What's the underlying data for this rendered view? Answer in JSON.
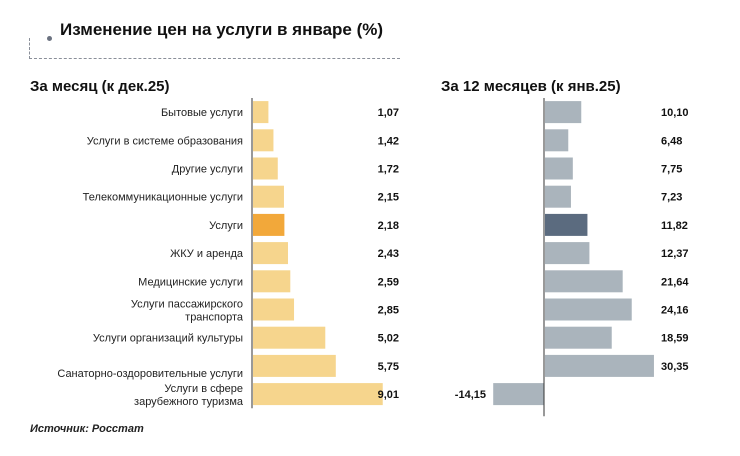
{
  "title": "Изменение цен на услуги в январе (%)",
  "source": "Источник: Росстат",
  "chart_data": [
    {
      "type": "bar",
      "orientation": "horizontal",
      "title": "За месяц (к дек.25)",
      "categories": [
        "Бытовые услуги",
        "Услуги в системе образования",
        "Другие услуги",
        "Телекоммуникационные услуги",
        "Услуги",
        "ЖКУ и аренда",
        "Медицинские услуги",
        "Услуги пассажирского транспорта",
        "Услуги организаций культуры",
        "Санаторно-оздоровительные услуги",
        "Услуги в сфере зарубежного туризма"
      ],
      "values": [
        1.07,
        1.42,
        1.72,
        2.15,
        2.18,
        2.43,
        2.59,
        2.85,
        5.02,
        5.75,
        9.01
      ],
      "value_labels": [
        "1,07",
        "1,42",
        "1,72",
        "2,15",
        "2,18",
        "2,43",
        "2,59",
        "2,85",
        "5,02",
        "5,75",
        "9,01"
      ],
      "highlight": "Услуги",
      "colors": {
        "bar": "#F6D58D",
        "highlight": "#F2A83A"
      }
    },
    {
      "type": "bar",
      "orientation": "horizontal",
      "title": "За 12 месяцев (к янв.25)",
      "categories": [
        "Бытовые услуги",
        "Услуги в системе образования",
        "Другие услуги",
        "Телекоммуникационные услуги",
        "Услуги",
        "ЖКУ и аренда",
        "Медицинские услуги",
        "Услуги пассажирского транспорта",
        "Услуги организаций культуры",
        "Санаторно-оздоровительные услуги",
        "Услуги в сфере зарубежного туризма"
      ],
      "values": [
        10.1,
        6.48,
        7.75,
        7.23,
        11.82,
        12.37,
        21.64,
        24.16,
        18.59,
        30.35,
        -14.15
      ],
      "value_labels": [
        "10,10",
        "6,48",
        "7,75",
        "7,23",
        "11,82",
        "12,37",
        "21,64",
        "24,16",
        "18,59",
        "30,35",
        "-14,15"
      ],
      "highlight": "Услуги",
      "colors": {
        "bar": "#AAB4BC",
        "highlight": "#5B6B7F"
      }
    }
  ]
}
